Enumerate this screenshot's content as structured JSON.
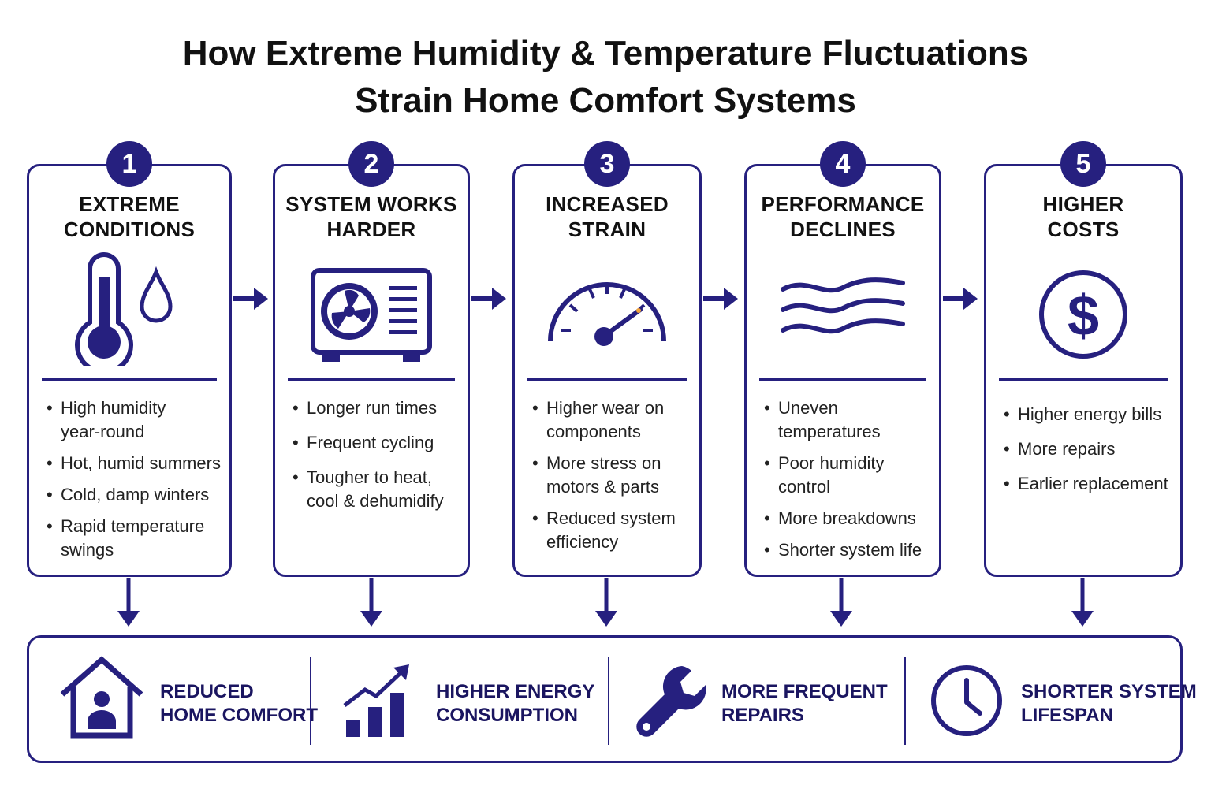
{
  "title": {
    "line1": "How Extreme Humidity & Temperature Fluctuations",
    "line2": "Strain Home Comfort Systems"
  },
  "colors": {
    "primary": "#26207f",
    "text": "#111111",
    "gauge_needle_tip": "#f2a23a"
  },
  "steps": [
    {
      "number": "1",
      "title_line1": "EXTREME",
      "title_line2": "CONDITIONS",
      "icon": "thermometer-droplet-icon",
      "bullets": [
        "High humidity year-round",
        "Hot, humid summers",
        "Cold, damp winters",
        "Rapid temperature swings"
      ]
    },
    {
      "number": "2",
      "title_line1": "SYSTEM WORKS",
      "title_line2": "HARDER",
      "icon": "ac-unit-icon",
      "bullets": [
        "Longer run times",
        "Frequent cycling",
        "Tougher to heat, cool & dehumidify"
      ]
    },
    {
      "number": "3",
      "title_line1": "INCREASED",
      "title_line2": "STRAIN",
      "icon": "gauge-icon",
      "bullets": [
        "Higher wear on components",
        "More stress on motors & parts",
        "Reduced system efficiency"
      ]
    },
    {
      "number": "4",
      "title_line1": "PERFORMANCE",
      "title_line2": "DECLINES",
      "icon": "waves-icon",
      "bullets": [
        "Uneven temperatures",
        "Poor humidity control",
        "More breakdowns",
        "Shorter system life"
      ]
    },
    {
      "number": "5",
      "title_line1": "HIGHER",
      "title_line2": "COSTS",
      "icon": "dollar-icon",
      "bullets": [
        "Higher energy bills",
        "More repairs",
        "Earlier replacement"
      ]
    }
  ],
  "outcomes": [
    {
      "line1": "REDUCED",
      "line2": "HOME COMFORT",
      "icon": "house-person-icon"
    },
    {
      "line1": "HIGHER ENERGY",
      "line2": "CONSUMPTION",
      "icon": "bar-chart-up-icon"
    },
    {
      "line1": "MORE FREQUENT",
      "line2": "REPAIRS",
      "icon": "wrench-icon"
    },
    {
      "line1": "SHORTER SYSTEM",
      "line2": "LIFESPAN",
      "icon": "clock-icon"
    }
  ]
}
